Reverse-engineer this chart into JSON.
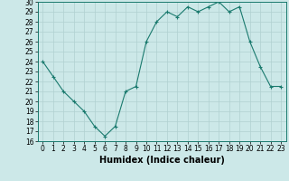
{
  "xlabel": "Humidex (Indice chaleur)",
  "x": [
    0,
    1,
    2,
    3,
    4,
    5,
    6,
    7,
    8,
    9,
    10,
    11,
    12,
    13,
    14,
    15,
    16,
    17,
    18,
    19,
    20,
    21,
    22,
    23
  ],
  "y": [
    24.0,
    22.5,
    21.0,
    20.0,
    19.0,
    17.5,
    16.5,
    17.5,
    21.0,
    21.5,
    26.0,
    28.0,
    29.0,
    28.5,
    29.5,
    29.0,
    29.5,
    30.0,
    29.0,
    29.5,
    26.0,
    23.5,
    21.5,
    21.5
  ],
  "ylim": [
    16,
    30
  ],
  "yticks": [
    16,
    17,
    18,
    19,
    20,
    21,
    22,
    23,
    24,
    25,
    26,
    27,
    28,
    29,
    30
  ],
  "line_color": "#1a7a6e",
  "marker": "+",
  "bg_color": "#cce8e8",
  "grid_color": "#b0d0d0",
  "tick_label_fontsize": 5.5,
  "xlabel_fontsize": 7.0
}
